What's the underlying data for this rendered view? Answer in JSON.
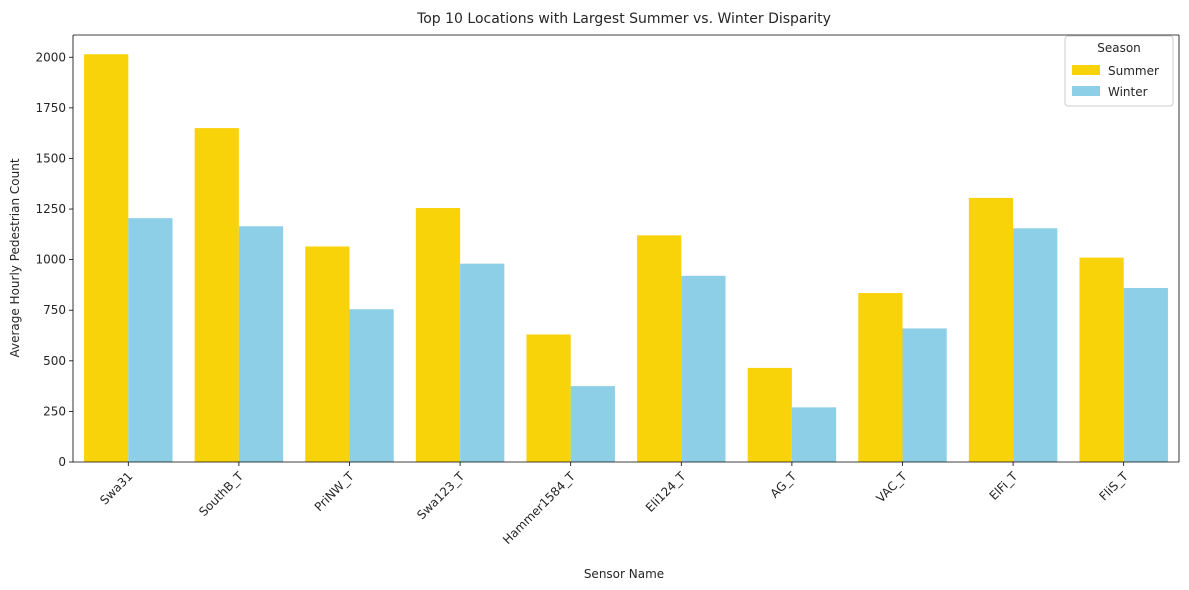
{
  "chart_data": {
    "type": "bar",
    "title": "Top 10 Locations with Largest Summer vs. Winter Disparity",
    "xlabel": "Sensor Name",
    "ylabel": "Average Hourly Pedestrian Count",
    "categories": [
      "Swa31",
      "SouthB_T",
      "PriNW_T",
      "Swa123_T",
      "Hammer1584_T",
      "Eli124_T",
      "AG_T",
      "VAC_T",
      "ElFi_T",
      "FliS_T"
    ],
    "series": [
      {
        "name": "Summer",
        "color": "#f9d30a",
        "values": [
          2015,
          1650,
          1065,
          1255,
          630,
          1120,
          465,
          835,
          1305,
          1010
        ]
      },
      {
        "name": "Winter",
        "color": "#8ecfe8",
        "values": [
          1205,
          1165,
          755,
          980,
          375,
          920,
          270,
          660,
          1155,
          860
        ]
      }
    ],
    "ylim": [
      0,
      2110
    ],
    "yticks": [
      0,
      250,
      500,
      750,
      1000,
      1250,
      1500,
      1750,
      2000
    ],
    "legend": {
      "title": "Season",
      "position": "top-right"
    },
    "grid": false
  }
}
